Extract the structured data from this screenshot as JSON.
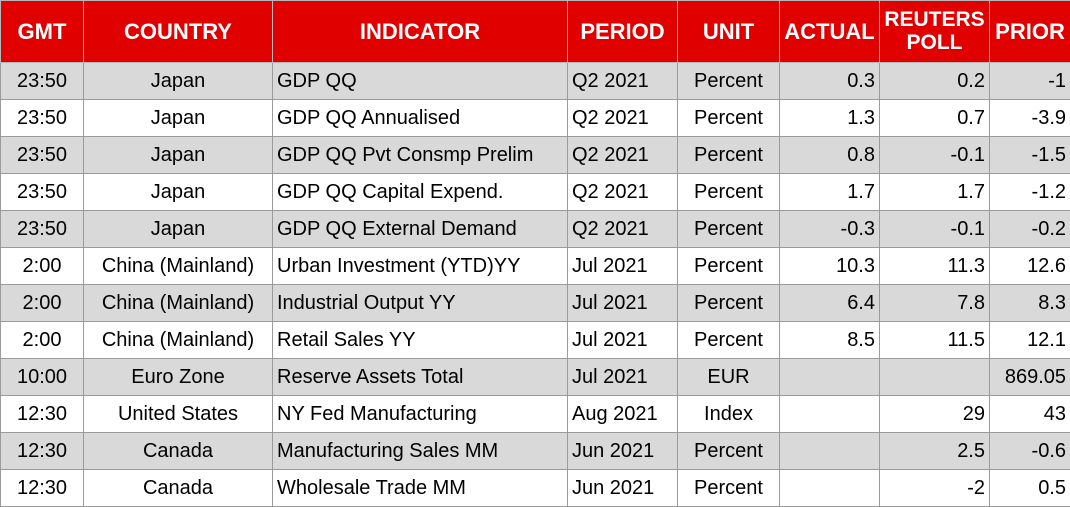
{
  "headers": {
    "gmt": "GMT",
    "country": "COUNTRY",
    "indicator": "INDICATOR",
    "period": "PERIOD",
    "unit": "UNIT",
    "actual": "ACTUAL",
    "poll_line1": "REUTERS",
    "poll_line2": "POLL",
    "prior": "PRIOR"
  },
  "colors": {
    "header_bg": "#e00000",
    "header_text": "#ffffff",
    "shaded_row": "#d9d9d9"
  },
  "rows": [
    {
      "gmt": "23:50",
      "country": "Japan",
      "indicator": "GDP QQ",
      "period": "Q2 2021",
      "unit": "Percent",
      "actual": "0.3",
      "poll": "0.2",
      "prior": "-1",
      "shaded": true
    },
    {
      "gmt": "23:50",
      "country": "Japan",
      "indicator": "GDP QQ Annualised",
      "period": "Q2 2021",
      "unit": "Percent",
      "actual": "1.3",
      "poll": "0.7",
      "prior": "-3.9",
      "shaded": false
    },
    {
      "gmt": "23:50",
      "country": "Japan",
      "indicator": "GDP QQ Pvt Consmp Prelim",
      "period": "Q2 2021",
      "unit": "Percent",
      "actual": "0.8",
      "poll": "-0.1",
      "prior": "-1.5",
      "shaded": true
    },
    {
      "gmt": "23:50",
      "country": "Japan",
      "indicator": "GDP QQ Capital Expend.",
      "period": "Q2 2021",
      "unit": "Percent",
      "actual": "1.7",
      "poll": "1.7",
      "prior": "-1.2",
      "shaded": false
    },
    {
      "gmt": "23:50",
      "country": "Japan",
      "indicator": "GDP QQ External Demand",
      "period": "Q2 2021",
      "unit": "Percent",
      "actual": "-0.3",
      "poll": "-0.1",
      "prior": "-0.2",
      "shaded": true
    },
    {
      "gmt": "2:00",
      "country": "China (Mainland)",
      "indicator": "Urban Investment (YTD)YY",
      "period": "Jul 2021",
      "unit": "Percent",
      "actual": "10.3",
      "poll": "11.3",
      "prior": "12.6",
      "shaded": false
    },
    {
      "gmt": "2:00",
      "country": "China (Mainland)",
      "indicator": "Industrial Output YY",
      "period": "Jul 2021",
      "unit": "Percent",
      "actual": "6.4",
      "poll": "7.8",
      "prior": "8.3",
      "shaded": true
    },
    {
      "gmt": "2:00",
      "country": "China (Mainland)",
      "indicator": "Retail Sales YY",
      "period": "Jul 2021",
      "unit": "Percent",
      "actual": "8.5",
      "poll": "11.5",
      "prior": "12.1",
      "shaded": false
    },
    {
      "gmt": "10:00",
      "country": "Euro Zone",
      "indicator": "Reserve Assets Total",
      "period": "Jul 2021",
      "unit": "EUR",
      "actual": "",
      "poll": "",
      "prior": "869.05",
      "shaded": true
    },
    {
      "gmt": "12:30",
      "country": "United States",
      "indicator": "NY Fed Manufacturing",
      "period": "Aug 2021",
      "unit": "Index",
      "actual": "",
      "poll": "29",
      "prior": "43",
      "shaded": false
    },
    {
      "gmt": "12:30",
      "country": "Canada",
      "indicator": "Manufacturing Sales MM",
      "period": "Jun 2021",
      "unit": "Percent",
      "actual": "",
      "poll": "2.5",
      "prior": "-0.6",
      "shaded": true
    },
    {
      "gmt": "12:30",
      "country": "Canada",
      "indicator": "Wholesale Trade MM",
      "period": "Jun 2021",
      "unit": "Percent",
      "actual": "",
      "poll": "-2",
      "prior": "0.5",
      "shaded": false
    }
  ]
}
